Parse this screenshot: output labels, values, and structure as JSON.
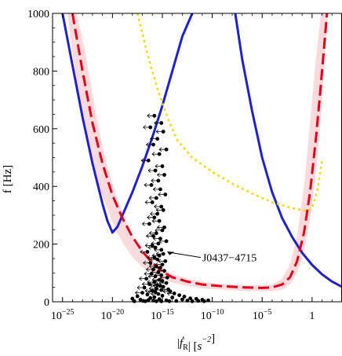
{
  "chart_data": {
    "type": "line",
    "xscale": "log",
    "xlim": [
      -26,
      3
    ],
    "ylim": [
      0,
      1000
    ],
    "grid": false,
    "legend": "none",
    "xlabel": "|ḟ_R| [s^-2]",
    "ylabel": "f [Hz]",
    "x_tick_labels": [
      "10^-25",
      "10^-20",
      "10^-15",
      "10^-10",
      "10^-5",
      "1"
    ],
    "x_ticks": [
      -25,
      -20,
      -15,
      -10,
      -5,
      0
    ],
    "y_ticks": [
      0,
      200,
      400,
      600,
      800,
      1000
    ],
    "y_tick_labels": [
      "0",
      "200",
      "400",
      "600",
      "800",
      "1000"
    ],
    "series": [
      {
        "style": "band",
        "color": "#fadadd",
        "x": [
          -24.5,
          -23.6,
          -22.8,
          -22.0,
          -21.2,
          -20.4,
          -19.6,
          -18.8,
          -18.0,
          -17.0,
          -16.0,
          -15.0,
          -14.0,
          -12.5,
          -11.0,
          -9.0,
          -7.0,
          -5.0,
          -4.0,
          -3.0,
          -2.2,
          -1.5,
          -0.8,
          -0.2,
          0.4,
          0.9,
          1.3,
          1.6
        ],
        "lower": [
          1000,
          760,
          600,
          480,
          385,
          310,
          245,
          195,
          155,
          120,
          95,
          78,
          66,
          55,
          47,
          42,
          38,
          36,
          36,
          42,
          60,
          100,
          175,
          290,
          450,
          650,
          850,
          1000
        ],
        "upper": [
          1000,
          1000,
          880,
          720,
          570,
          455,
          365,
          290,
          230,
          178,
          140,
          115,
          96,
          80,
          70,
          62,
          58,
          57,
          60,
          80,
          130,
          230,
          400,
          620,
          850,
          1000,
          1000,
          1000
        ]
      },
      {
        "style": "solid",
        "color": "#1f22cc",
        "x": [
          -25.0,
          -24.0,
          -23.0,
          -22.0,
          -21.0,
          -20.5,
          -20.0,
          -19.5,
          -19.0,
          -18.0,
          -17.0,
          -16.0,
          -15.0,
          -14.0,
          -13.0,
          -12.0
        ],
        "y": [
          1000,
          820,
          640,
          480,
          340,
          280,
          240,
          260,
          300,
          380,
          470,
          570,
          680,
          800,
          920,
          1000
        ]
      },
      {
        "style": "solid",
        "color": "#1f22cc",
        "x": [
          -7.7,
          -7.0,
          -6.0,
          -5.0,
          -4.0,
          -3.0,
          -2.0,
          -1.0,
          0.0,
          1.0,
          2.0,
          3.0
        ],
        "y": [
          1000,
          840,
          660,
          500,
          380,
          290,
          225,
          170,
          128,
          95,
          70,
          52
        ]
      },
      {
        "style": "dashed",
        "color": "#e3001b",
        "x": [
          -24.0,
          -23.0,
          -22.0,
          -21.0,
          -20.0,
          -19.0,
          -18.0,
          -17.0,
          -16.0,
          -15.0,
          -14.0,
          -12.5,
          -11.0,
          -9.0,
          -7.0,
          -5.0,
          -4.0,
          -3.0,
          -2.2,
          -1.5,
          -0.8,
          -0.2,
          0.4,
          0.8,
          1.2,
          1.5
        ],
        "y": [
          1000,
          800,
          620,
          480,
          370,
          290,
          225,
          175,
          135,
          105,
          85,
          70,
          60,
          54,
          50,
          48,
          50,
          60,
          85,
          140,
          240,
          380,
          570,
          720,
          880,
          1000
        ]
      },
      {
        "style": "dotted",
        "color": "#f2d900",
        "x": [
          -17.5,
          -16.5,
          -15.5,
          -14.5,
          -13.5,
          -12.0,
          -10.0,
          -8.0,
          -6.0,
          -4.0,
          -2.0,
          -1.0,
          -0.5,
          0.0,
          0.5,
          1.0
        ],
        "y": [
          1000,
          860,
          740,
          640,
          560,
          500,
          450,
          410,
          375,
          345,
          325,
          318,
          315,
          325,
          380,
          490
        ]
      }
    ],
    "pulsars": {
      "color": "#000000",
      "x": [
        -15.8,
        -15.1,
        -16.2,
        -14.9,
        -15.5,
        -15.9,
        -14.6,
        -15.3,
        -16.4,
        -15.0,
        -15.7,
        -14.8,
        -15.4,
        -16.1,
        -15.2,
        -14.7,
        -15.6,
        -16.0,
        -15.1,
        -14.9,
        -15.5,
        -15.8,
        -15.3,
        -16.3,
        -14.8,
        -15.0,
        -15.6,
        -15.9,
        -15.2,
        -14.6,
        -15.4,
        -16.0,
        -15.7,
        -15.1,
        -16.5,
        -14.9,
        -15.3,
        -15.8,
        -15.5,
        -14.7,
        -16.2,
        -15.0,
        -15.6,
        -15.2,
        -15.9,
        -14.8,
        -15.4,
        -16.1,
        -15.1,
        -15.7,
        -14.5,
        -16.6,
        -15.3,
        -15.0,
        -15.8,
        -14.6,
        -16.3,
        -15.5,
        -15.2,
        -14.9,
        -16.8,
        -15.6,
        -14.4,
        -15.1,
        -16.0,
        -14.2,
        -15.7,
        -17.0,
        -13.8,
        -15.4,
        -16.5,
        -13.3,
        -15.0,
        -17.5,
        -12.8,
        -15.8,
        -14.0,
        -16.2,
        -12.2,
        -18.0,
        -11.6,
        -15.3,
        -13.0,
        -17.2,
        -11.0,
        -16.4,
        -14.6,
        -10.4,
        -15.9,
        -12.5,
        -16.9,
        -13.6,
        -11.4,
        -17.8,
        -15.1,
        -10.8,
        -14.3,
        -16.7,
        -12.0,
        -15.6
      ],
      "y": [
        645,
        620,
        605,
        590,
        565,
        545,
        528,
        512,
        490,
        470,
        455,
        440,
        420,
        405,
        390,
        372,
        360,
        345,
        330,
        318,
        305,
        292,
        280,
        270,
        258,
        248,
        238,
        228,
        219,
        210,
        202,
        195,
        188,
        180,
        173,
        166,
        160,
        153,
        147,
        141,
        135,
        129,
        123,
        118,
        112,
        107,
        102,
        97,
        92,
        88,
        84,
        80,
        76,
        72,
        68,
        65,
        61,
        58,
        55,
        52,
        49,
        46,
        43,
        41,
        38,
        36,
        34,
        31,
        29,
        27,
        25,
        23,
        21,
        19,
        18,
        16,
        15,
        13,
        12,
        11,
        10,
        9,
        8,
        7,
        7,
        6,
        5,
        5,
        4,
        4,
        3,
        3,
        3,
        2,
        2,
        2,
        2,
        2,
        2,
        2
      ],
      "arrow_left_fraction": 0.7
    },
    "annotations": [
      {
        "text": "J0437−4715",
        "target_x": -14.6,
        "target_y": 174,
        "text_x": -11.0,
        "text_y": 140
      }
    ]
  }
}
